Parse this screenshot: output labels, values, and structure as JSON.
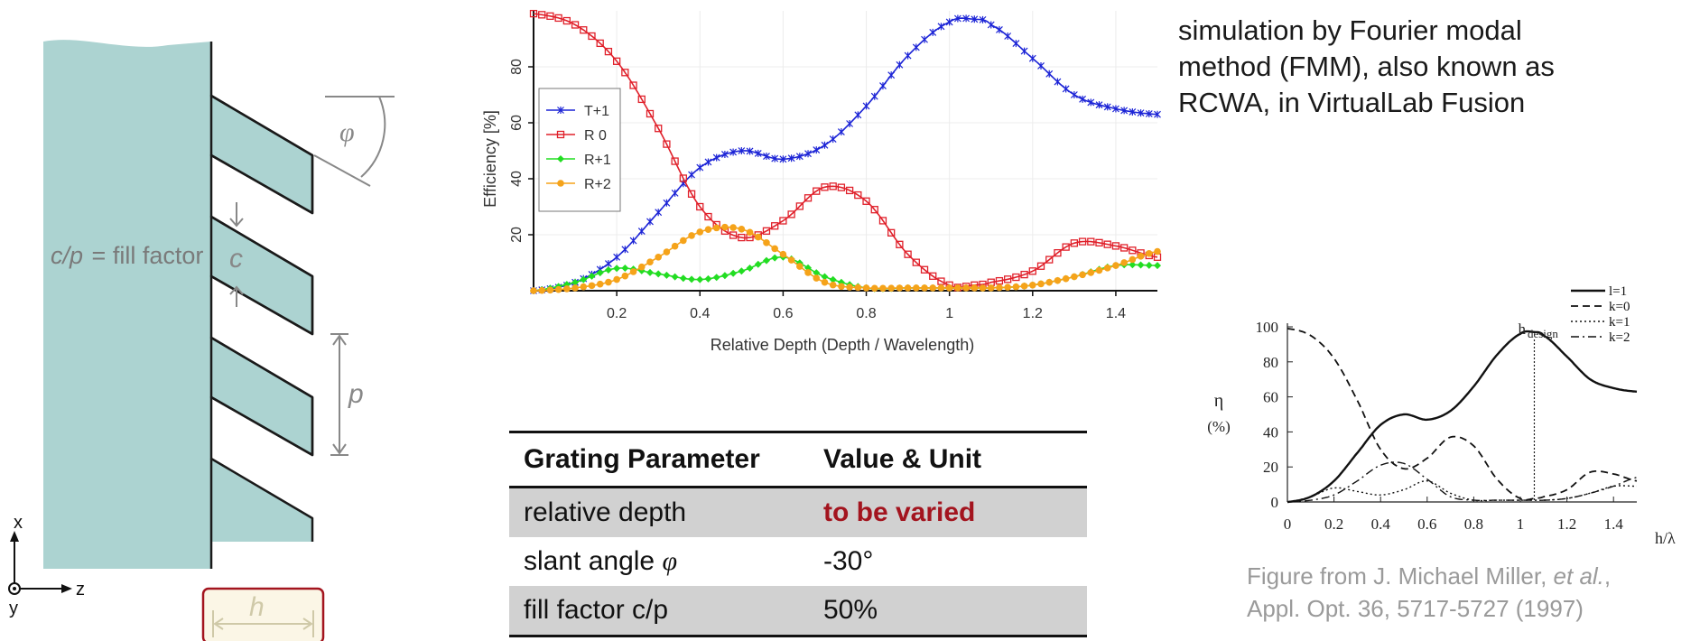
{
  "diagram": {
    "fill_label_italic": "c/p",
    "fill_label_eq": "=",
    "fill_label_text": "fill factor",
    "c_label": "c",
    "p_label": "p",
    "phi_label": "φ",
    "h_label": "h",
    "axis_x": "x",
    "axis_y": "y",
    "axis_z": "z",
    "colors": {
      "grating": "#acd3d1",
      "outline": "#1a1a1a",
      "dim": "#888888",
      "h_box_border": "#a3141e",
      "h_box_fill": "#fbf6e6"
    }
  },
  "description": {
    "line1": "simulation by Fourier modal",
    "line2": "method (FMM), also known as",
    "line3": "RCWA, in VirtualLab Fusion"
  },
  "table": {
    "headers": [
      "Grating Parameter",
      "Value & Unit"
    ],
    "rows": [
      {
        "param": "relative depth",
        "value": "to be varied"
      },
      {
        "param": "slant angle ",
        "param_symbol": "φ",
        "value": "-30°"
      },
      {
        "param": "fill factor c/p",
        "value": "50%"
      }
    ],
    "accent_color": "#a3141e"
  },
  "citation": {
    "line1_prefix": "Figure from J. Michael Miller, ",
    "line1_italic": "et al.",
    "line1_suffix": ",",
    "line2": "Appl. Opt. 36, 5717-5727 (1997)"
  },
  "chart_data": [
    {
      "type": "line",
      "xlabel": "Relative Depth (Depth / Wavelength)",
      "ylabel": "Efficiency [%]",
      "xlim": [
        0,
        1.5
      ],
      "ylim": [
        0,
        100
      ],
      "xticks": [
        0.2,
        0.4,
        0.6,
        0.8,
        1.0,
        1.2,
        1.4
      ],
      "xtick_labels": [
        "0.2",
        "0.4",
        "0.6",
        "0.8",
        "1",
        "1.2",
        "1.4"
      ],
      "yticks": [
        20,
        40,
        60,
        80
      ],
      "legend_position": "top-left",
      "x": [
        0,
        0.1,
        0.2,
        0.3,
        0.4,
        0.5,
        0.6,
        0.7,
        0.8,
        0.9,
        1.0,
        1.06,
        1.1,
        1.2,
        1.3,
        1.4,
        1.5
      ],
      "series": [
        {
          "name": "T+1",
          "color": "#1c24d6",
          "marker": "star",
          "values": [
            0,
            3,
            12,
            28,
            44,
            50,
            47,
            52,
            66,
            84,
            96,
            97,
            95,
            83,
            70,
            65,
            63
          ]
        },
        {
          "name": "R 0",
          "color": "#e0202a",
          "marker": "square",
          "values": [
            99,
            95,
            82,
            58,
            30,
            19,
            25,
            37,
            32,
            13,
            2,
            2,
            3,
            7,
            17,
            16,
            12
          ]
        },
        {
          "name": "R+1",
          "color": "#22dd22",
          "marker": "diamond",
          "values": [
            0,
            3,
            8,
            6,
            4,
            7,
            12,
            5,
            1,
            1,
            1,
            1,
            1,
            2,
            5,
            9,
            9
          ]
        },
        {
          "name": "R+2",
          "color": "#f5a31a",
          "marker": "circle",
          "values": [
            0,
            1,
            4,
            12,
            21,
            22,
            13,
            3,
            1,
            1,
            1,
            1,
            1,
            2,
            5,
            9,
            14
          ]
        }
      ]
    },
    {
      "type": "line",
      "xlabel": "h/λ",
      "ylabel": "η",
      "ylabel_unit": "(%)",
      "annotation_main": "h",
      "annotation_sub": "design",
      "annotation_x": 1.06,
      "xlim": [
        0,
        1.5
      ],
      "ylim": [
        0,
        100
      ],
      "xticks": [
        0,
        0.2,
        0.4,
        0.6,
        0.8,
        1.0,
        1.2,
        1.4
      ],
      "xtick_labels": [
        "0",
        "0.2",
        "0.4",
        "0.6",
        "0.8",
        "1",
        "1.2",
        "1.4"
      ],
      "yticks": [
        0,
        20,
        40,
        60,
        80,
        100
      ],
      "legend_position": "top-right",
      "x": [
        0,
        0.1,
        0.2,
        0.3,
        0.4,
        0.5,
        0.6,
        0.7,
        0.8,
        0.9,
        1.0,
        1.06,
        1.1,
        1.2,
        1.3,
        1.4,
        1.5
      ],
      "series": [
        {
          "name": "l=1",
          "dash": "solid",
          "values": [
            0,
            3,
            12,
            28,
            44,
            50,
            47,
            52,
            66,
            84,
            96,
            97,
            95,
            83,
            70,
            65,
            63
          ]
        },
        {
          "name": "k=0",
          "dash": "dashed",
          "values": [
            99,
            95,
            82,
            58,
            30,
            19,
            25,
            37,
            32,
            13,
            2,
            2,
            3,
            7,
            17,
            16,
            12
          ]
        },
        {
          "name": "k=1",
          "dash": "dotted",
          "values": [
            0,
            3,
            8,
            6,
            4,
            7,
            12,
            5,
            1,
            1,
            1,
            1,
            1,
            2,
            5,
            9,
            9
          ]
        },
        {
          "name": "k=2",
          "dash": "dashdot",
          "values": [
            0,
            1,
            4,
            12,
            21,
            22,
            13,
            3,
            1,
            1,
            1,
            1,
            1,
            2,
            5,
            9,
            14
          ]
        }
      ]
    }
  ]
}
